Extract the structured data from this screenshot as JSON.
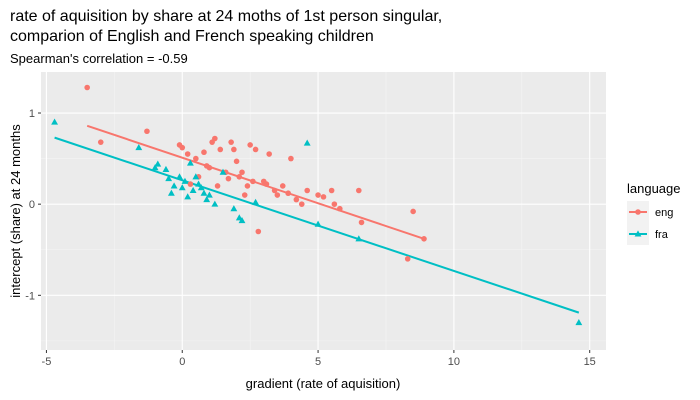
{
  "chart_data": {
    "type": "scatter",
    "title_line1": "rate of aquisition by share at 24 moths of 1st person singular,",
    "title_line2": "comparion of English and French speaking children",
    "subtitle": "Spearman's correlation = -0.59",
    "xlabel": "gradient (rate of aquisition)",
    "ylabel": "intercept (share) at 24 months",
    "xlim": [
      -5.2,
      15.6
    ],
    "ylim": [
      -1.6,
      1.45
    ],
    "x_ticks": [
      -5,
      0,
      5,
      10,
      15
    ],
    "x_tick_labels": [
      "-5",
      "0",
      "5",
      "10",
      "15"
    ],
    "y_ticks": [
      -1,
      0,
      1
    ],
    "y_tick_labels": [
      "-1",
      "0",
      "1"
    ],
    "grid": true,
    "legend": {
      "title": "language",
      "position": "right",
      "entries": [
        {
          "label": "eng",
          "color": "#F8766D",
          "shape": "circle"
        },
        {
          "label": "fra",
          "color": "#00BFC4",
          "shape": "triangle"
        }
      ]
    },
    "series": [
      {
        "name": "eng",
        "color": "#F8766D",
        "shape": "circle",
        "points": [
          [
            -3.5,
            1.28
          ],
          [
            -3.0,
            0.68
          ],
          [
            -1.3,
            0.8
          ],
          [
            -0.1,
            0.65
          ],
          [
            0.0,
            0.62
          ],
          [
            0.2,
            0.55
          ],
          [
            0.5,
            0.5
          ],
          [
            0.8,
            0.57
          ],
          [
            0.9,
            0.42
          ],
          [
            1.0,
            0.4
          ],
          [
            1.1,
            0.68
          ],
          [
            1.2,
            0.72
          ],
          [
            1.3,
            0.2
          ],
          [
            1.6,
            0.35
          ],
          [
            1.7,
            0.28
          ],
          [
            1.8,
            0.68
          ],
          [
            1.9,
            0.6
          ],
          [
            2.0,
            0.47
          ],
          [
            2.1,
            0.3
          ],
          [
            2.2,
            0.35
          ],
          [
            2.3,
            0.1
          ],
          [
            2.5,
            0.65
          ],
          [
            2.6,
            0.25
          ],
          [
            2.7,
            0.6
          ],
          [
            2.8,
            -0.3
          ],
          [
            3.0,
            0.25
          ],
          [
            3.1,
            0.22
          ],
          [
            3.2,
            0.55
          ],
          [
            3.4,
            0.15
          ],
          [
            3.5,
            0.1
          ],
          [
            3.7,
            0.2
          ],
          [
            3.9,
            0.12
          ],
          [
            4.0,
            0.5
          ],
          [
            4.2,
            0.05
          ],
          [
            4.4,
            0.0
          ],
          [
            4.6,
            0.15
          ],
          [
            5.0,
            0.1
          ],
          [
            5.2,
            0.08
          ],
          [
            5.5,
            0.15
          ],
          [
            5.6,
            0.0
          ],
          [
            5.8,
            -0.05
          ],
          [
            6.5,
            0.15
          ],
          [
            6.6,
            -0.2
          ],
          [
            8.3,
            -0.6
          ],
          [
            8.5,
            -0.08
          ],
          [
            8.9,
            -0.38
          ],
          [
            0.3,
            0.22
          ],
          [
            0.6,
            0.3
          ],
          [
            1.4,
            0.6
          ],
          [
            2.4,
            0.2
          ]
        ],
        "fit": [
          [
            -3.5,
            0.86
          ],
          [
            8.9,
            -0.38
          ]
        ]
      },
      {
        "name": "fra",
        "color": "#00BFC4",
        "shape": "triangle",
        "points": [
          [
            -4.7,
            0.9
          ],
          [
            -1.6,
            0.62
          ],
          [
            -1.0,
            0.4
          ],
          [
            -0.9,
            0.44
          ],
          [
            -0.6,
            0.38
          ],
          [
            -0.5,
            0.28
          ],
          [
            -0.4,
            0.12
          ],
          [
            -0.3,
            0.2
          ],
          [
            -0.1,
            0.3
          ],
          [
            0.0,
            0.18
          ],
          [
            0.1,
            0.25
          ],
          [
            0.2,
            0.08
          ],
          [
            0.4,
            0.15
          ],
          [
            0.5,
            0.3
          ],
          [
            0.6,
            0.22
          ],
          [
            0.7,
            0.18
          ],
          [
            0.8,
            0.12
          ],
          [
            0.9,
            0.05
          ],
          [
            1.0,
            0.1
          ],
          [
            1.2,
            0.0
          ],
          [
            1.5,
            0.35
          ],
          [
            1.9,
            -0.05
          ],
          [
            2.1,
            -0.15
          ],
          [
            2.2,
            -0.18
          ],
          [
            2.7,
            0.02
          ],
          [
            4.6,
            0.67
          ],
          [
            5.0,
            -0.22
          ],
          [
            6.5,
            -0.38
          ],
          [
            14.6,
            -1.3
          ],
          [
            0.3,
            0.45
          ]
        ],
        "fit": [
          [
            -4.7,
            0.73
          ],
          [
            14.6,
            -1.19
          ]
        ]
      }
    ]
  }
}
